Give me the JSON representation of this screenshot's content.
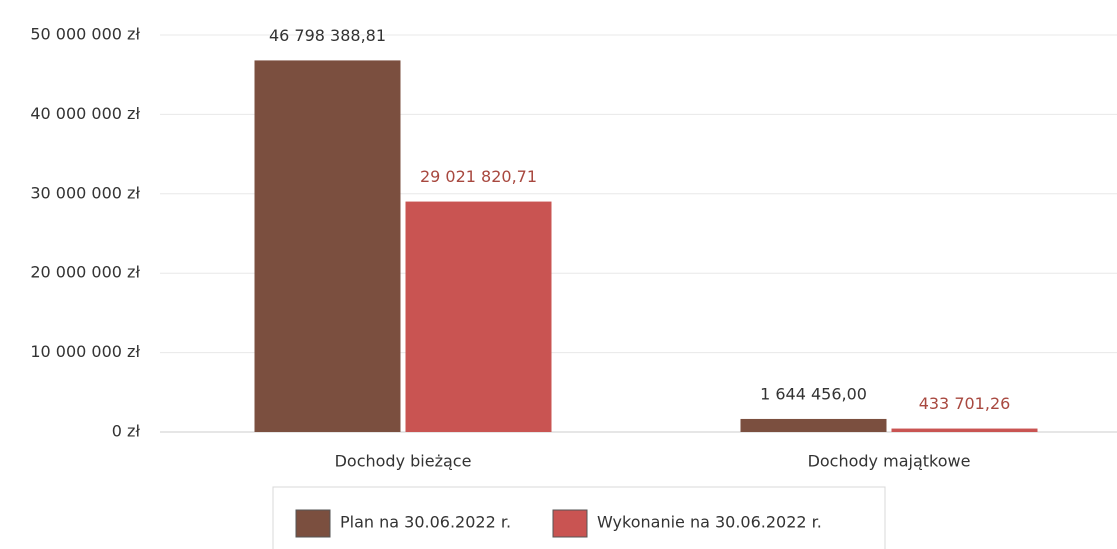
{
  "chart_data": {
    "type": "bar",
    "categories": [
      "Dochody bieżące",
      "Dochody majątkowe"
    ],
    "series": [
      {
        "name": "Plan na 30.06.2022 r.",
        "color": "#7b4f3f",
        "values": [
          46798388.81,
          1644456.0
        ],
        "value_labels": [
          "46 798 388,81",
          "1 644 456,00"
        ]
      },
      {
        "name": "Wykonanie na 30.06.2022 r.",
        "color": "#c95452",
        "values": [
          29021820.71,
          433701.26
        ],
        "value_labels": [
          "29 021 820,71",
          "433 701,26"
        ]
      }
    ],
    "ylim": [
      0,
      50000000
    ],
    "yticks": [
      {
        "value": 0,
        "label": "0 zł"
      },
      {
        "value": 10000000,
        "label": "10 000 000 zł"
      },
      {
        "value": 20000000,
        "label": "20 000 000 zł"
      },
      {
        "value": 30000000,
        "label": "30 000 000 zł"
      },
      {
        "value": 40000000,
        "label": "40 000 000 zł"
      },
      {
        "value": 50000000,
        "label": "50 000 000 zł"
      }
    ],
    "grid": true,
    "legend": "bottom"
  }
}
